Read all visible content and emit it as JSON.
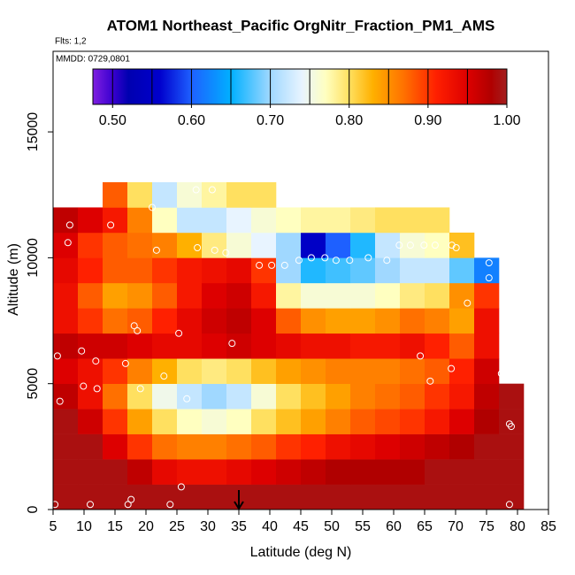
{
  "chart_data": {
    "type": "heatmap",
    "title": "ATOM1 Northeast_Pacific OrgNitr_Fraction_PM1_AMS",
    "annotations": [
      "Flts: 1,2",
      "MMDD: 0729,0801"
    ],
    "xlabel": "Latitude (deg N)",
    "ylabel": "Altitude (m)",
    "xlim": [
      5,
      85
    ],
    "ylim": [
      0,
      18200
    ],
    "xticks": [
      5,
      10,
      15,
      20,
      25,
      30,
      35,
      40,
      45,
      50,
      55,
      60,
      65,
      70,
      75,
      80,
      85
    ],
    "yticks": [
      0,
      5000,
      10000,
      15000
    ],
    "x": [
      7,
      11,
      15,
      19,
      23,
      27,
      31,
      35,
      39,
      43,
      47,
      51,
      55,
      59,
      63,
      67,
      71,
      75,
      79
    ],
    "y": [
      500,
      1500,
      2500,
      3500,
      4500,
      5500,
      6500,
      7500,
      8500,
      9500,
      10500,
      11500,
      12500
    ],
    "z": [
      [
        0.99,
        0.99,
        0.99,
        0.99,
        0.99,
        0.99,
        0.99,
        0.99,
        0.99,
        0.99,
        0.99,
        0.99,
        0.99,
        0.99,
        0.99,
        0.99,
        0.99,
        0.99,
        0.99
      ],
      [
        0.99,
        0.99,
        0.99,
        0.97,
        0.94,
        0.93,
        0.93,
        0.94,
        0.95,
        0.96,
        0.97,
        0.98,
        0.98,
        0.98,
        0.98,
        0.99,
        0.99,
        0.99,
        0.99
      ],
      [
        0.99,
        0.99,
        0.95,
        0.9,
        0.87,
        0.86,
        0.86,
        0.87,
        0.88,
        0.9,
        0.91,
        0.93,
        0.94,
        0.95,
        0.96,
        0.97,
        0.98,
        0.99,
        0.99
      ],
      [
        0.99,
        0.96,
        0.9,
        0.84,
        0.8,
        0.77,
        0.76,
        0.77,
        0.8,
        0.82,
        0.84,
        0.86,
        0.88,
        0.89,
        0.9,
        0.92,
        0.95,
        0.98,
        0.99
      ],
      [
        0.97,
        0.93,
        0.87,
        0.8,
        0.75,
        0.72,
        0.7,
        0.72,
        0.76,
        0.8,
        0.82,
        0.84,
        0.86,
        0.87,
        0.88,
        0.9,
        0.92,
        0.97,
        0.99
      ],
      [
        0.95,
        0.93,
        0.9,
        0.86,
        0.83,
        0.8,
        0.79,
        0.8,
        0.82,
        0.84,
        0.85,
        0.86,
        0.86,
        0.86,
        0.87,
        0.88,
        0.91,
        0.96,
        null
      ],
      [
        0.97,
        0.96,
        0.96,
        0.95,
        0.94,
        0.94,
        0.95,
        0.96,
        0.95,
        0.94,
        0.93,
        0.93,
        0.92,
        0.92,
        0.93,
        0.91,
        0.88,
        0.93,
        null
      ],
      [
        0.93,
        0.9,
        0.87,
        0.88,
        0.91,
        0.94,
        0.96,
        0.97,
        0.95,
        0.88,
        0.85,
        0.84,
        0.84,
        0.85,
        0.87,
        0.86,
        0.84,
        0.93,
        null
      ],
      [
        0.93,
        0.88,
        0.84,
        0.85,
        0.88,
        0.92,
        0.95,
        0.96,
        0.92,
        0.78,
        0.76,
        0.76,
        0.76,
        0.77,
        0.79,
        0.8,
        0.85,
        0.9,
        null
      ],
      [
        0.94,
        0.91,
        0.88,
        0.88,
        0.9,
        0.92,
        0.93,
        0.94,
        0.9,
        0.7,
        0.66,
        0.67,
        0.68,
        0.7,
        0.72,
        0.72,
        0.68,
        0.62,
        null
      ],
      [
        0.95,
        0.9,
        0.88,
        0.87,
        0.86,
        0.83,
        0.79,
        0.76,
        0.74,
        0.7,
        0.55,
        0.6,
        0.66,
        0.72,
        0.76,
        0.77,
        0.82,
        null,
        null
      ],
      [
        0.97,
        0.95,
        0.92,
        0.86,
        0.77,
        0.72,
        0.72,
        0.74,
        0.76,
        0.77,
        0.78,
        0.78,
        0.79,
        0.8,
        0.8,
        0.8,
        null,
        null,
        null
      ],
      [
        null,
        null,
        0.88,
        0.8,
        0.72,
        0.76,
        0.78,
        0.8,
        0.8,
        null,
        null,
        null,
        null,
        null,
        null,
        null,
        null,
        null,
        null
      ]
    ],
    "colorscale": [
      [
        0.475,
        "#7f1fe0"
      ],
      [
        0.5,
        "#3a00d0"
      ],
      [
        0.52,
        "#0000b0"
      ],
      [
        0.56,
        "#0000cd"
      ],
      [
        0.6,
        "#1e60ff"
      ],
      [
        0.65,
        "#00b0ff"
      ],
      [
        0.7,
        "#a0d8ff"
      ],
      [
        0.74,
        "#e8f4ff"
      ],
      [
        0.77,
        "#ffffc0"
      ],
      [
        0.8,
        "#ffe060"
      ],
      [
        0.83,
        "#ffb000"
      ],
      [
        0.87,
        "#ff7000"
      ],
      [
        0.91,
        "#ff2000"
      ],
      [
        0.95,
        "#dd0000"
      ],
      [
        0.98,
        "#b00000"
      ],
      [
        1.0,
        "#a31f1f"
      ]
    ],
    "colorbar_lim": [
      0.475,
      1.0
    ],
    "colorbar_ticks": [
      {
        "value": 0.5,
        "label": "0.50"
      },
      {
        "value": 0.6,
        "label": "0.60"
      },
      {
        "value": 0.7,
        "label": "0.70"
      },
      {
        "value": 0.8,
        "label": "0.80"
      },
      {
        "value": 0.9,
        "label": "0.90"
      },
      {
        "value": 1.0,
        "label": "1.00"
      }
    ],
    "colorbar_dividers": [
      0.5,
      0.55,
      0.6,
      0.65,
      0.7,
      0.75,
      0.8,
      0.85,
      0.9,
      0.95
    ],
    "points": {
      "x": [
        5.3,
        5.7,
        6.1,
        7.4,
        7.7,
        9.6,
        9.9,
        11,
        11.9,
        12.1,
        14.3,
        16.7,
        17.1,
        17.6,
        18.1,
        18.6,
        19.1,
        21,
        21.7,
        22.9,
        23.9,
        25.3,
        25.7,
        26.6,
        28.1,
        28.3,
        30.7,
        31.1,
        32.9,
        33.9,
        38.3,
        40.3,
        42.4,
        44.7,
        46.7,
        48.9,
        50.7,
        52.9,
        55.9,
        58.9,
        60.9,
        62.7,
        64.3,
        64.9,
        65.9,
        66.7,
        69.4,
        69.3,
        70.1,
        71.9,
        75.4,
        75.4,
        77.4,
        78.7,
        79,
        78.7
      ],
      "y": [
        200,
        6100,
        4300,
        10600,
        11300,
        6300,
        4900,
        200,
        5900,
        4800,
        11300,
        5800,
        200,
        400,
        7300,
        7100,
        4800,
        12000,
        10300,
        5300,
        200,
        7000,
        900,
        4400,
        12700,
        10400,
        12700,
        10300,
        10200,
        6600,
        9700,
        9700,
        9700,
        9900,
        10000,
        10000,
        9900,
        9900,
        10000,
        9900,
        10500,
        10500,
        6100,
        10500,
        5100,
        10500,
        10500,
        5600,
        10400,
        8200,
        9800,
        9200,
        5400,
        3400,
        3300,
        200
      ]
    },
    "arrow_x": 35
  }
}
